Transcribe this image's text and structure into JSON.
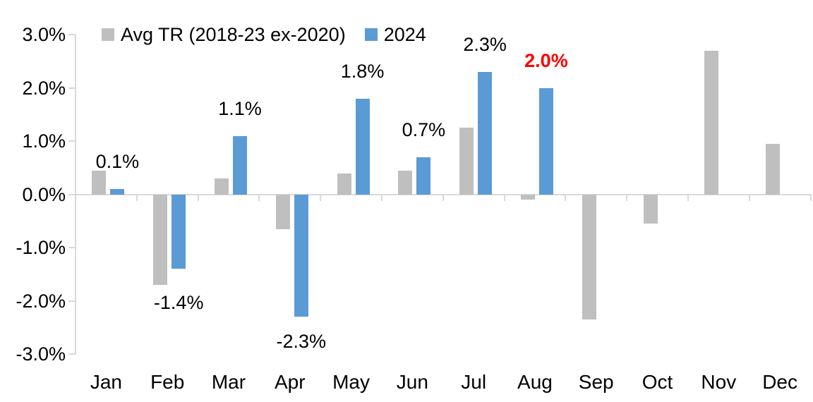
{
  "chart_data": {
    "type": "bar",
    "title": "",
    "xlabel": "",
    "ylabel": "",
    "categories": [
      "Jan",
      "Feb",
      "Mar",
      "Apr",
      "May",
      "Jun",
      "Jul",
      "Aug",
      "Sep",
      "Oct",
      "Nov",
      "Dec"
    ],
    "series": [
      {
        "name": "Avg TR (2018-23 ex-2020)",
        "color": "#BFBFBF",
        "values": [
          0.45,
          -1.7,
          0.3,
          -0.65,
          0.4,
          0.45,
          1.25,
          -0.1,
          -2.35,
          -0.55,
          2.7,
          0.95
        ]
      },
      {
        "name": "2024",
        "color": "#5B9BD5",
        "values": [
          0.1,
          -1.4,
          1.1,
          -2.3,
          1.8,
          0.7,
          2.3,
          2.0,
          null,
          null,
          null,
          null
        ]
      }
    ],
    "data_labels": [
      {
        "category": "Jan",
        "text": "0.1%",
        "color": "#000000",
        "bold": false
      },
      {
        "category": "Feb",
        "text": "-1.4%",
        "color": "#000000",
        "bold": false
      },
      {
        "category": "Mar",
        "text": "1.1%",
        "color": "#000000",
        "bold": false
      },
      {
        "category": "Apr",
        "text": "-2.3%",
        "color": "#000000",
        "bold": false
      },
      {
        "category": "May",
        "text": "1.8%",
        "color": "#000000",
        "bold": false
      },
      {
        "category": "Jun",
        "text": "0.7%",
        "color": "#000000",
        "bold": false
      },
      {
        "category": "Jul",
        "text": "2.3%",
        "color": "#000000",
        "bold": false
      },
      {
        "category": "Aug",
        "text": "2.0%",
        "color": "#FF0000",
        "bold": true
      }
    ],
    "y_axis": {
      "tick_labels": [
        "3.0%",
        "2.0%",
        "1.0%",
        "0.0%",
        "-1.0%",
        "-2.0%",
        "-3.0%"
      ],
      "min": -3.0,
      "max": 3.0,
      "step": 1.0,
      "unit": "%"
    },
    "legend": {
      "position": "top",
      "entries": [
        {
          "label": "Avg TR (2018-23 ex-2020)",
          "color": "#BFBFBF"
        },
        {
          "label": "2024",
          "color": "#5B9BD5"
        }
      ]
    },
    "colors": {
      "axis_line": "#D9D9D9",
      "text": "#000000",
      "highlight_label": "#FF0000",
      "background": "#FFFFFF"
    },
    "grid": false
  }
}
